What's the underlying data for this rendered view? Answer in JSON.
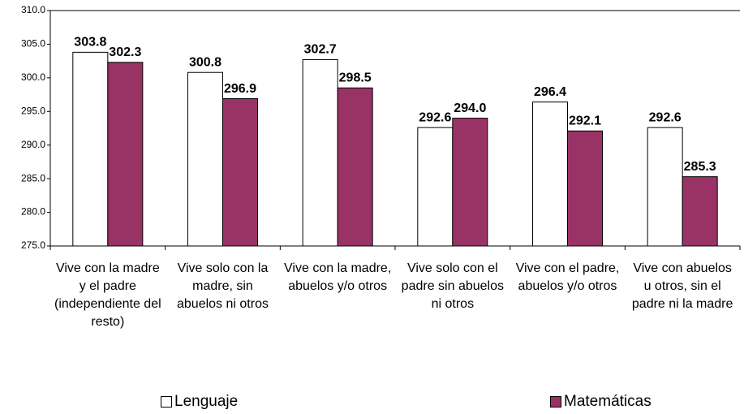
{
  "chart_data": {
    "type": "bar",
    "categories": [
      "Vive con la madre y el padre (independiente del resto)",
      "Vive solo con la madre, sin abuelos ni otros",
      "Vive con la madre, abuelos y/o otros",
      "Vive solo con el padre sin abuelos ni otros",
      "Vive con el padre, abuelos y/o otros",
      "Vive con abuelos u otros, sin el padre ni la madre"
    ],
    "series": [
      {
        "name": "Lenguaje",
        "color": "#ffffff",
        "values": [
          303.8,
          300.8,
          302.7,
          292.6,
          296.4,
          292.6
        ],
        "value_labels": [
          "303.8",
          "300.8",
          "302.7",
          "292.6",
          "296.4",
          "292.6"
        ]
      },
      {
        "name": "Matemáticas",
        "color": "#993366",
        "values": [
          302.3,
          296.9,
          298.5,
          294.0,
          292.1,
          285.3
        ],
        "value_labels": [
          "302.3",
          "296.9",
          "298.5",
          "294.0",
          "292.1",
          "285.3"
        ]
      }
    ],
    "ylim": [
      275,
      310
    ],
    "yticks": [
      {
        "value": 275,
        "label": "275.0"
      },
      {
        "value": 280,
        "label": "280.0"
      },
      {
        "value": 285,
        "label": "285.0"
      },
      {
        "value": 290,
        "label": "290.0"
      },
      {
        "value": 295,
        "label": "295.0"
      },
      {
        "value": 300,
        "label": "300.0"
      },
      {
        "value": 305,
        "label": "305.0"
      },
      {
        "value": 310,
        "label": "310.0"
      }
    ],
    "grid": false
  }
}
